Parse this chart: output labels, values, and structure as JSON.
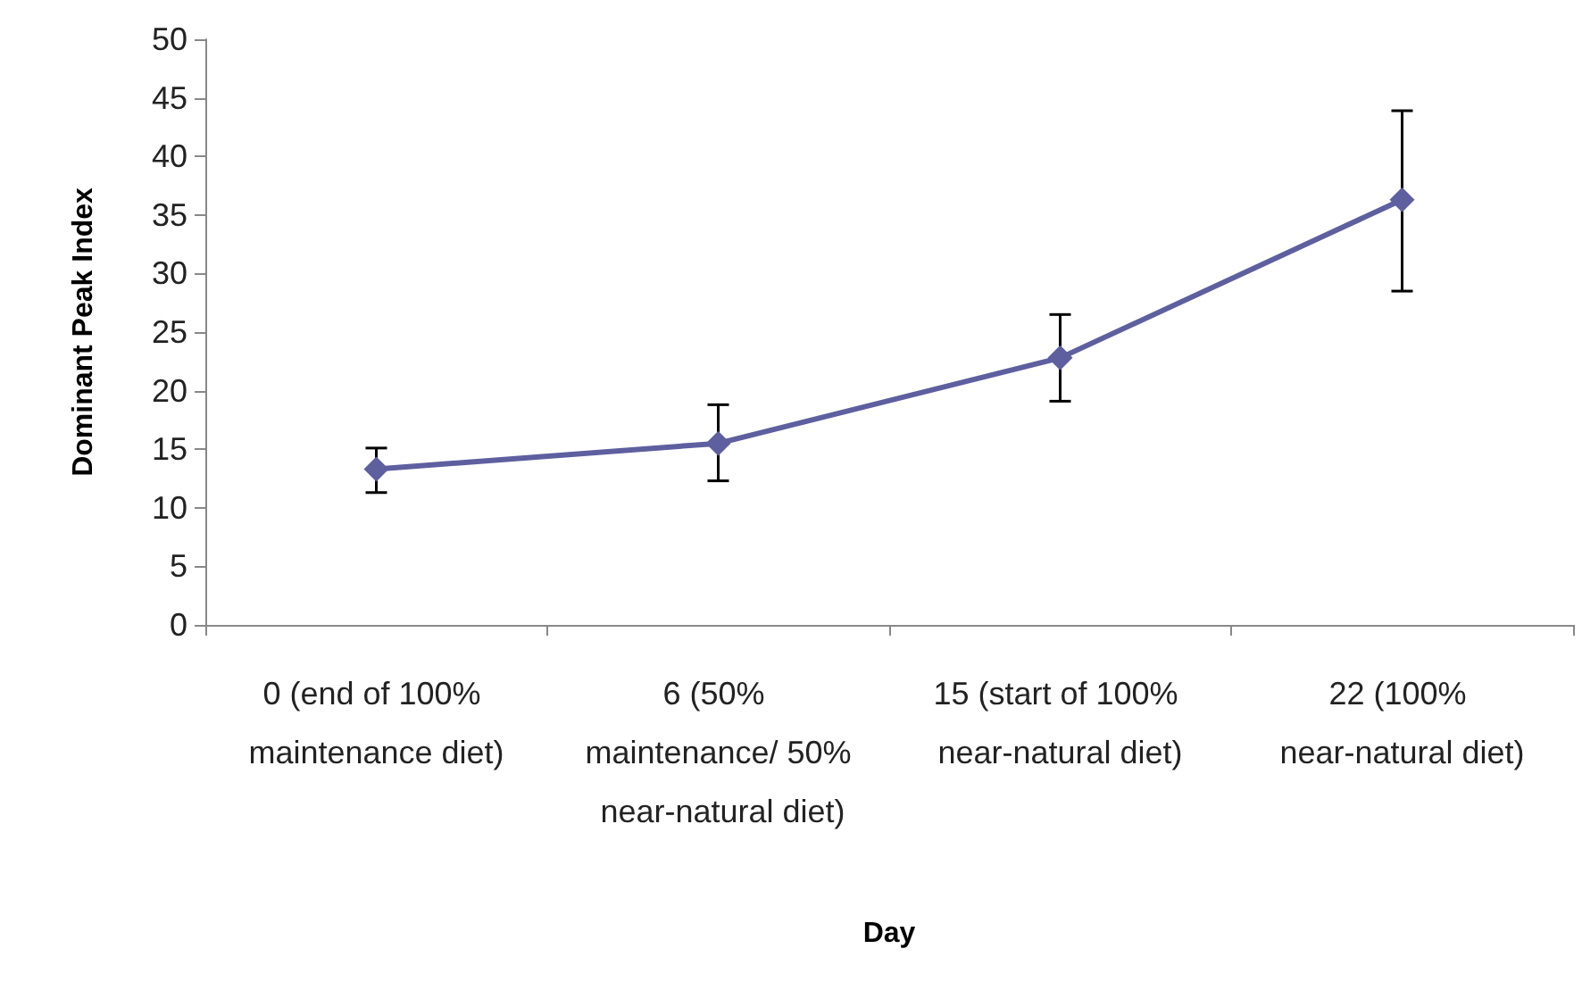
{
  "chart_data": {
    "type": "line",
    "xlabel": "Day",
    "ylabel": "Dominant Peak Index",
    "categories": [
      "0 (end of 100% maintenance diet)",
      "6 (50% maintenance/ 50% near-natural diet)",
      "15 (start of 100% near-natural diet)",
      "22 (100% near-natural diet)"
    ],
    "series": [
      {
        "color": "#5e5f9f",
        "values": [
          13.3,
          15.5,
          22.8,
          36.3
        ],
        "errors": [
          [
            11.3,
            15.1
          ],
          [
            12.3,
            18.8
          ],
          [
            19.1,
            26.5
          ],
          [
            28.5,
            43.9
          ]
        ]
      }
    ],
    "ylim": [
      0,
      50
    ],
    "yticks": [
      0,
      5,
      10,
      15,
      20,
      25,
      30,
      35,
      40,
      45,
      50
    ],
    "grid": false,
    "marker": "diamond",
    "line_style": "solid"
  }
}
